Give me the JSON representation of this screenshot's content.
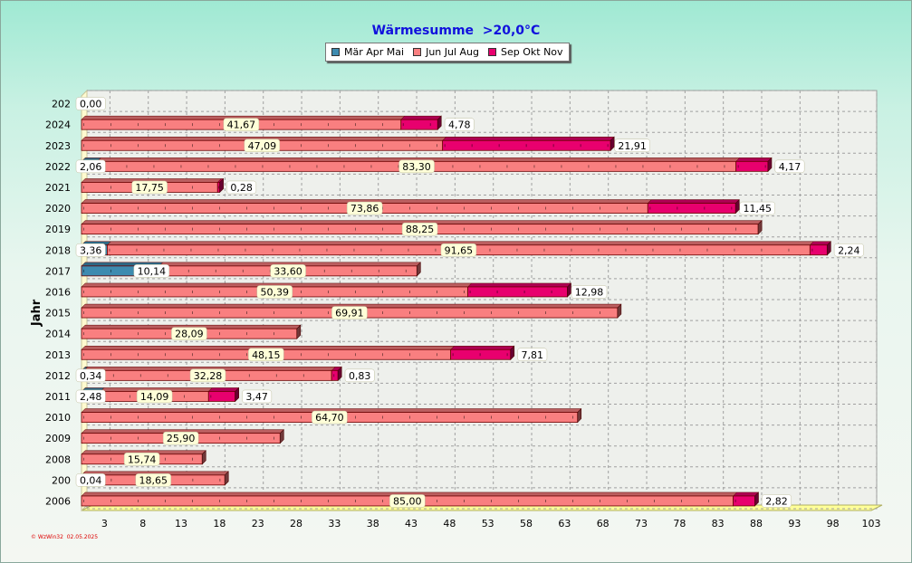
{
  "chart_data": {
    "type": "bar",
    "orientation": "horizontal",
    "stacked": true,
    "title": "Wärmesumme  >20,0°C",
    "ylabel": "Jahr",
    "xlim": [
      0,
      103
    ],
    "x_ticks": [
      3,
      8,
      13,
      18,
      23,
      28,
      33,
      38,
      43,
      48,
      53,
      58,
      63,
      68,
      73,
      78,
      83,
      88,
      93,
      98,
      103
    ],
    "grid": true,
    "legend_position": "top-center",
    "categories": [
      "202",
      "2024",
      "2023",
      "2022",
      "2021",
      "2020",
      "2019",
      "2018",
      "2017",
      "2016",
      "2015",
      "2014",
      "2013",
      "2012",
      "2011",
      "2010",
      "2009",
      "2008",
      "200",
      "2006"
    ],
    "series": [
      {
        "name": "Mär Apr Mai",
        "color": "#3d8bb0",
        "values": [
          0,
          0,
          0,
          2.06,
          0,
          0,
          0,
          3.36,
          10.14,
          0,
          0,
          0,
          0,
          0.34,
          2.48,
          0,
          0,
          0,
          0.04,
          0
        ],
        "labels": [
          "0,00",
          "",
          "",
          "2,06",
          "",
          "",
          "",
          "3,36",
          "10,14",
          "",
          "",
          "",
          "",
          "0,34",
          "2,48",
          "",
          "",
          "",
          "0,04",
          ""
        ]
      },
      {
        "name": "Jun Jul Aug",
        "color": "#f97f80",
        "values": [
          0,
          41.67,
          47.09,
          83.3,
          17.75,
          73.86,
          88.25,
          91.65,
          33.6,
          50.39,
          69.91,
          28.09,
          48.15,
          32.28,
          14.09,
          64.7,
          25.9,
          15.74,
          18.65,
          85.0
        ],
        "labels": [
          "",
          "41,67",
          "47,09",
          "83,30",
          "17,75",
          "73,86",
          "88,25",
          "91,65",
          "33,60",
          "50,39",
          "69,91",
          "28,09",
          "48,15",
          "32,28",
          "14,09",
          "64,70",
          "25,90",
          "15,74",
          "18,65",
          "85,00"
        ]
      },
      {
        "name": "Sep Okt Nov",
        "color": "#e8006e",
        "values": [
          0,
          4.78,
          21.91,
          4.17,
          0.28,
          11.45,
          0,
          2.24,
          0,
          12.98,
          0,
          0,
          7.81,
          0.83,
          3.47,
          0,
          0,
          0,
          0,
          2.82
        ],
        "labels": [
          "",
          "4,78",
          "21,91",
          "4,17",
          "0,28",
          "11,45",
          "",
          "2,24",
          "",
          "12,98",
          "",
          "",
          "7,81",
          "0,83",
          "3,47",
          "",
          "",
          "",
          "",
          "2,82"
        ]
      }
    ]
  },
  "credit": "© WzWin32  02.05.2025"
}
